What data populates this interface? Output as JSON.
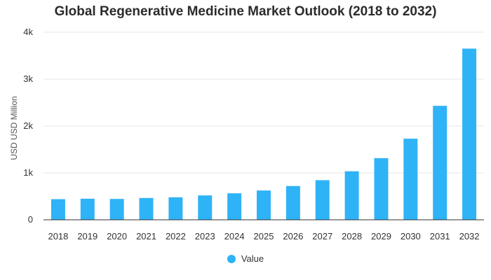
{
  "chart_data": {
    "type": "bar",
    "title": "Global Regenerative Medicine Market Outlook (2018 to 2032)",
    "xlabel": "",
    "ylabel": "USD USD Million",
    "categories": [
      "2018",
      "2019",
      "2020",
      "2021",
      "2022",
      "2023",
      "2024",
      "2025",
      "2026",
      "2027",
      "2028",
      "2029",
      "2030",
      "2031",
      "2032"
    ],
    "series": [
      {
        "name": "Value",
        "values": [
          440,
          450,
          445,
          465,
          480,
          520,
          565,
          625,
          720,
          845,
          1035,
          1315,
          1730,
          2430,
          3650
        ]
      }
    ],
    "ylim": [
      0,
      4000
    ],
    "yticks": [
      0,
      1000,
      2000,
      3000,
      4000
    ],
    "ytick_labels": [
      "0",
      "1k",
      "2k",
      "3k",
      "4k"
    ],
    "grid": true,
    "legend_position": "bottom-center"
  },
  "colors": {
    "bar": "#2fb3f7",
    "grid": "#e6e6e6",
    "axis": "#333333"
  }
}
